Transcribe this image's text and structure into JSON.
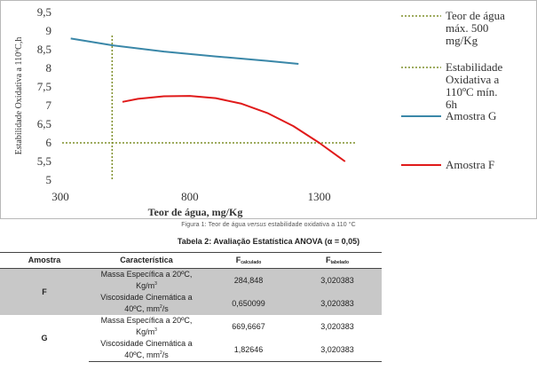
{
  "figure": {
    "caption_prefix": "Figura 1: Teor de água ",
    "caption_italic": "versus",
    "caption_suffix": " estabilidade oxidativa a 110 °C"
  },
  "chart_data": {
    "type": "line",
    "title": "",
    "xlabel": "Teor de água, mg/Kg",
    "ylabel": "Estabilidade Oxidativa a 110ºC,h",
    "xlim": [
      300,
      1500
    ],
    "ylim": [
      5,
      9.5
    ],
    "x_ticks": [
      "300",
      "800",
      "1300"
    ],
    "y_ticks": [
      "5",
      "5,5",
      "6",
      "6,5",
      "7",
      "7,5",
      "8",
      "8,5",
      "9",
      "9,5"
    ],
    "grid": false,
    "legend_position": "right",
    "reference_lines": [
      {
        "name": "Teor de água máx. 500 mg/Kg",
        "orientation": "vertical",
        "value": 500,
        "color": "#7f8f2a",
        "style": "dotted"
      },
      {
        "name": "Estabilidade Oxidativa a 110ºC mín. 6h",
        "orientation": "horizontal",
        "value": 6,
        "color": "#7f8f2a",
        "style": "dotted"
      }
    ],
    "series": [
      {
        "name": "Amostra G",
        "color": "#3a87a8",
        "x": [
          340,
          500,
          700,
          900,
          1100,
          1220
        ],
        "y": [
          8.8,
          8.62,
          8.45,
          8.32,
          8.2,
          8.12
        ]
      },
      {
        "name": "Amostra F",
        "color": "#e01a1a",
        "x": [
          540,
          600,
          700,
          800,
          900,
          1000,
          1100,
          1200,
          1300,
          1400
        ],
        "y": [
          7.1,
          7.18,
          7.25,
          7.26,
          7.2,
          7.05,
          6.8,
          6.45,
          6.0,
          5.5
        ]
      }
    ]
  },
  "legend_lines": {
    "teor_1": "Teor de água",
    "teor_2": "máx. 500",
    "teor_3": "mg/Kg",
    "estab_1": "Estabilidade",
    "estab_2": "Oxidativa a",
    "estab_3": "110ºC mín.",
    "estab_4": "6h",
    "amostra_g": "Amostra G",
    "amostra_f": "Amostra F"
  },
  "table": {
    "title": "Tabela 2: Avaliação Estatística ANOVA (α = 0,05)",
    "headers": {
      "amostra": "Amostra",
      "caracteristica": "Característica",
      "f_calc_main": "F",
      "f_calc_sub": "calculado",
      "f_tab_main": "F",
      "f_tab_sub": "tabelado"
    },
    "groups": [
      {
        "amostra": "F",
        "rows": [
          {
            "carac_line1": "Massa Específica a 20ºC,",
            "carac_line2": "Kg/m",
            "carac_sup": "3",
            "f_calc": "284,848",
            "f_tab": "3,020383"
          },
          {
            "carac_line1": "Viscosidade Cinemática a",
            "carac_line2": "40ºC, mm",
            "carac_sup": "2",
            "carac_tail": "/s",
            "f_calc": "0,650099",
            "f_tab": "3,020383"
          }
        ]
      },
      {
        "amostra": "G",
        "rows": [
          {
            "carac_line1": "Massa Específica a 20ºC,",
            "carac_line2": "Kg/m",
            "carac_sup": "3",
            "f_calc": "669,6667",
            "f_tab": "3,020383"
          },
          {
            "carac_line1": "Viscosidade Cinemática a",
            "carac_line2": "40ºC, mm",
            "carac_sup": "2",
            "carac_tail": "/s",
            "f_calc": "1,82646",
            "f_tab": "3,020383"
          }
        ]
      }
    ]
  }
}
